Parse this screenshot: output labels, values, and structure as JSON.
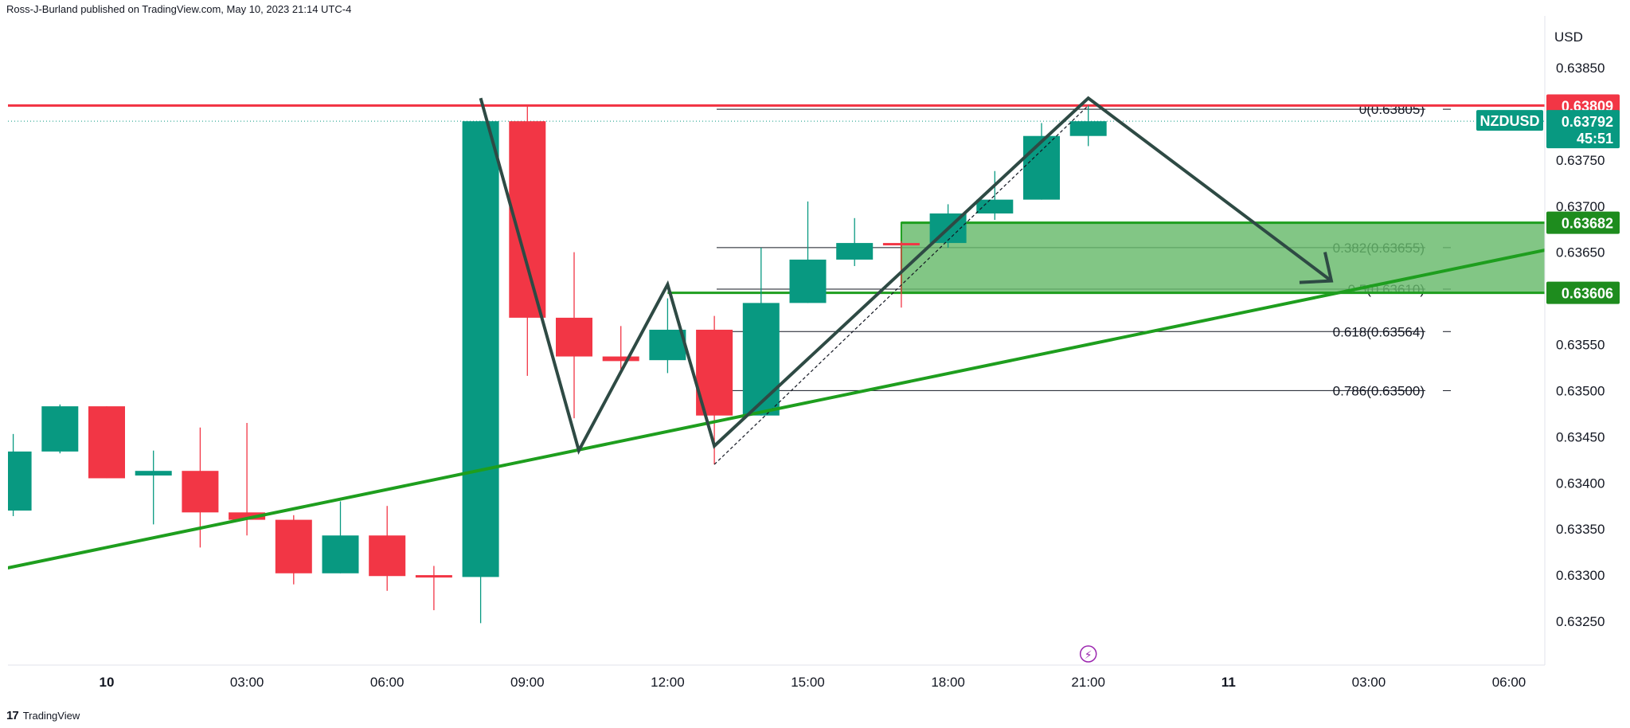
{
  "header": {
    "publisher": "Ross-J-Burland published on TradingView.com, May 10, 2023 21:14 UTC-4"
  },
  "footer": {
    "logo_mark": "17",
    "brand": "TradingView"
  },
  "colors": {
    "bull": "#089981",
    "bear": "#f23645",
    "resistance": "#f23645",
    "trendline": "#1e9e1e",
    "zone_fill": "#67b96a",
    "pattern": "#2e4a44",
    "fib": "#131722"
  },
  "chart_data": {
    "type": "candlestick",
    "symbol": "NZDUSD",
    "currency": "USD",
    "ylim": [
      0.6322,
      0.6389
    ],
    "y_ticks": [
      "0.63850",
      "0.63750",
      "0.63700",
      "0.63650",
      "0.63550",
      "0.63500",
      "0.63450",
      "0.63400",
      "0.63350",
      "0.63300",
      "0.63250"
    ],
    "x_ticks": [
      {
        "label": "10",
        "t": 0
      },
      {
        "label": "03:00",
        "t": 3
      },
      {
        "label": "06:00",
        "t": 6
      },
      {
        "label": "09:00",
        "t": 9
      },
      {
        "label": "12:00",
        "t": 12
      },
      {
        "label": "15:00",
        "t": 15
      },
      {
        "label": "18:00",
        "t": 18
      },
      {
        "label": "21:00",
        "t": 21
      },
      {
        "label": "11",
        "t": 24
      },
      {
        "label": "03:00",
        "t": 27
      },
      {
        "label": "06:00",
        "t": 30
      }
    ],
    "candles": [
      {
        "t": -2,
        "o": 0.6337,
        "h": 0.63453,
        "l": 0.63364,
        "c": 0.63434
      },
      {
        "t": -1,
        "o": 0.63434,
        "h": 0.63485,
        "l": 0.63432,
        "c": 0.63483
      },
      {
        "t": 0,
        "o": 0.63483,
        "h": 0.63483,
        "l": 0.63405,
        "c": 0.63405
      },
      {
        "t": 1,
        "o": 0.63408,
        "h": 0.63435,
        "l": 0.63355,
        "c": 0.63413
      },
      {
        "t": 2,
        "o": 0.63413,
        "h": 0.6346,
        "l": 0.6333,
        "c": 0.63368
      },
      {
        "t": 3,
        "o": 0.63368,
        "h": 0.63465,
        "l": 0.63343,
        "c": 0.6336
      },
      {
        "t": 4,
        "o": 0.6336,
        "h": 0.63365,
        "l": 0.6329,
        "c": 0.63302
      },
      {
        "t": 5,
        "o": 0.63302,
        "h": 0.6338,
        "l": 0.63302,
        "c": 0.63343
      },
      {
        "t": 6,
        "o": 0.63343,
        "h": 0.63375,
        "l": 0.63283,
        "c": 0.63299
      },
      {
        "t": 7,
        "o": 0.633,
        "h": 0.6331,
        "l": 0.63262,
        "c": 0.63298
      },
      {
        "t": 8,
        "o": 0.63298,
        "h": 0.63792,
        "l": 0.63248,
        "c": 0.63792
      },
      {
        "t": 9,
        "o": 0.63792,
        "h": 0.63809,
        "l": 0.63516,
        "c": 0.63579
      },
      {
        "t": 10,
        "o": 0.63579,
        "h": 0.6365,
        "l": 0.6347,
        "c": 0.63537
      },
      {
        "t": 11,
        "o": 0.63537,
        "h": 0.6357,
        "l": 0.63523,
        "c": 0.63532
      },
      {
        "t": 12,
        "o": 0.63533,
        "h": 0.636,
        "l": 0.63519,
        "c": 0.63566
      },
      {
        "t": 13,
        "o": 0.63566,
        "h": 0.63581,
        "l": 0.6342,
        "c": 0.63473
      },
      {
        "t": 14,
        "o": 0.63473,
        "h": 0.63655,
        "l": 0.63473,
        "c": 0.63595
      },
      {
        "t": 15,
        "o": 0.63595,
        "h": 0.63705,
        "l": 0.63595,
        "c": 0.63642
      },
      {
        "t": 16,
        "o": 0.63642,
        "h": 0.63687,
        "l": 0.63635,
        "c": 0.6366
      },
      {
        "t": 17,
        "o": 0.6366,
        "h": 0.63662,
        "l": 0.6359,
        "c": 0.63658
      },
      {
        "t": 18,
        "o": 0.6366,
        "h": 0.63702,
        "l": 0.63655,
        "c": 0.63692
      },
      {
        "t": 19,
        "o": 0.63692,
        "h": 0.63738,
        "l": 0.63685,
        "c": 0.63707
      },
      {
        "t": 20,
        "o": 0.63707,
        "h": 0.6379,
        "l": 0.63707,
        "c": 0.63776
      },
      {
        "t": 21,
        "o": 0.63776,
        "h": 0.63809,
        "l": 0.63765,
        "c": 0.63792
      }
    ],
    "fib_levels": [
      {
        "label": "0(0.63805)",
        "value": 0.63805
      },
      {
        "label": "0.382(0.63655)",
        "value": 0.63655
      },
      {
        "label": "0.5(0.63610)",
        "value": 0.6361
      },
      {
        "label": "0.618(0.63564)",
        "value": 0.63564
      },
      {
        "label": "0.786(0.63500)",
        "value": 0.635
      }
    ],
    "resistance": {
      "value": 0.63809,
      "label": "0.63809"
    },
    "last_price": {
      "value": 0.63792,
      "label": "0.63792",
      "countdown": "45:51"
    },
    "zone": {
      "top": 0.63682,
      "bottom": 0.63606,
      "top_label": "0.63682",
      "bottom_label": "0.63606",
      "t_start": 17.0,
      "t_end": 33.5
    },
    "trendline": [
      {
        "t": -2.2,
        "v": 0.63307
      },
      {
        "t": 33.7,
        "v": 0.63683
      }
    ],
    "pattern_path": [
      {
        "t": 8.0,
        "v": 0.63817
      },
      {
        "t": 10.1,
        "v": 0.63435
      },
      {
        "t": 12.0,
        "v": 0.63615
      },
      {
        "t": 13.0,
        "v": 0.6344
      },
      {
        "t": 21.0,
        "v": 0.63817
      },
      {
        "t": 26.2,
        "v": 0.63619
      }
    ],
    "fib_anchor": [
      {
        "t": 13.0,
        "v": 0.6342
      },
      {
        "t": 21.0,
        "v": 0.63809
      }
    ],
    "event_marker": {
      "t": 21.0,
      "glyph": "⚡"
    }
  }
}
